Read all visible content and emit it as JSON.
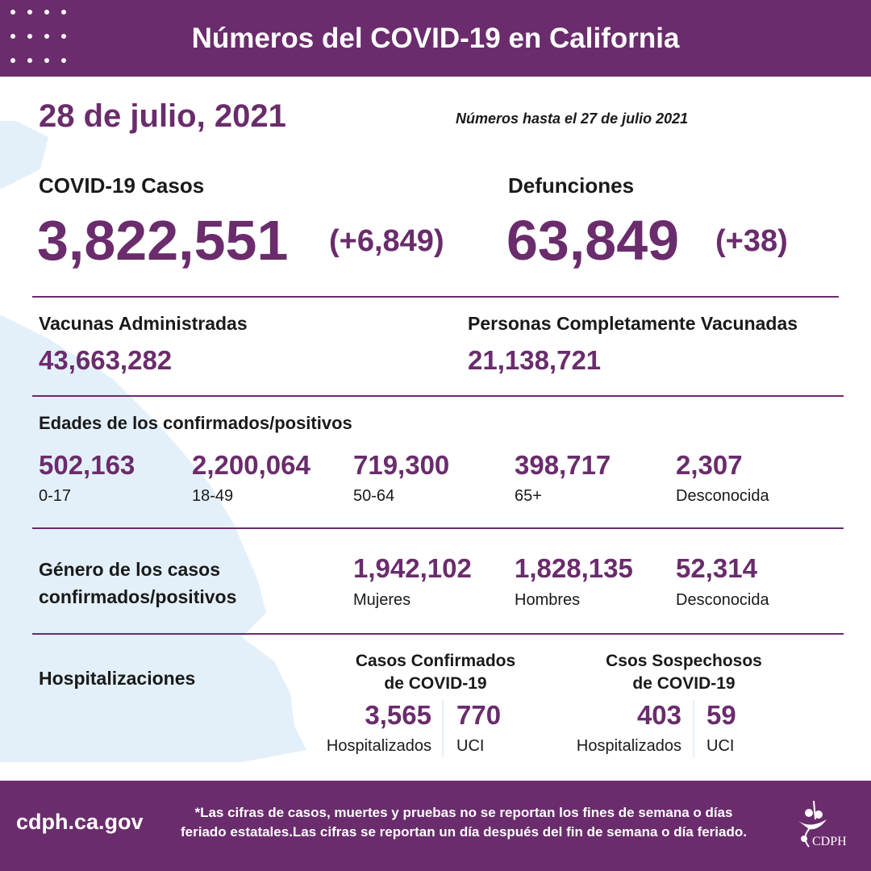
{
  "header": {
    "title": "Números del COVID-19 en California"
  },
  "date": "28 de julio, 2021",
  "as_of": "Números hasta el 27 de julio 2021",
  "cases": {
    "label": "COVID-19 Casos",
    "total": "3,822,551",
    "change": "(+6,849)"
  },
  "deaths": {
    "label": "Defunciones",
    "total": "63,849",
    "change": "(+38)"
  },
  "vaccines": {
    "label": "Vacunas Administradas",
    "value": "43,663,282"
  },
  "fully_vaccinated": {
    "label": "Personas Completamente Vacunadas",
    "value": "21,138,721"
  },
  "ages": {
    "title": "Edades de los confirmados/positivos",
    "items": [
      {
        "value": "502,163",
        "label": "0-17"
      },
      {
        "value": "2,200,064",
        "label": "18-49"
      },
      {
        "value": "719,300",
        "label": "50-64"
      },
      {
        "value": "398,717",
        "label": "65+"
      },
      {
        "value": "2,307",
        "label": "Desconocida"
      }
    ]
  },
  "gender": {
    "title_line1": "Género de los casos",
    "title_line2": "confirmados/positivos",
    "items": [
      {
        "value": "1,942,102",
        "label": "Mujeres"
      },
      {
        "value": "1,828,135",
        "label": "Hombres"
      },
      {
        "value": "52,314",
        "label": "Desconocida"
      }
    ]
  },
  "hospital": {
    "title": "Hospitalizaciones",
    "confirmed": {
      "title_line1": "Casos Confirmados",
      "title_line2": "de COVID-19",
      "hosp": "3,565",
      "hosp_label": "Hospitalizados",
      "icu": "770",
      "icu_label": "UCI"
    },
    "suspected": {
      "title_line1": "Csos Sospechosos",
      "title_line2": "de COVID-19",
      "hosp": "403",
      "hosp_label": "Hospitalizados",
      "icu": "59",
      "icu_label": "UCI"
    }
  },
  "footer": {
    "site": "cdph.ca.gov",
    "note_line1": "*Las cifras de casos, muertes y pruebas no se reportan los fines de semana o días",
    "note_line2": "feriado estatales.Las cifras se reportan un día después del fin de semana o día feriado.",
    "logo": "CDPH"
  },
  "colors": {
    "primary": "#6a2c6c",
    "map": "#e3f0fa"
  }
}
